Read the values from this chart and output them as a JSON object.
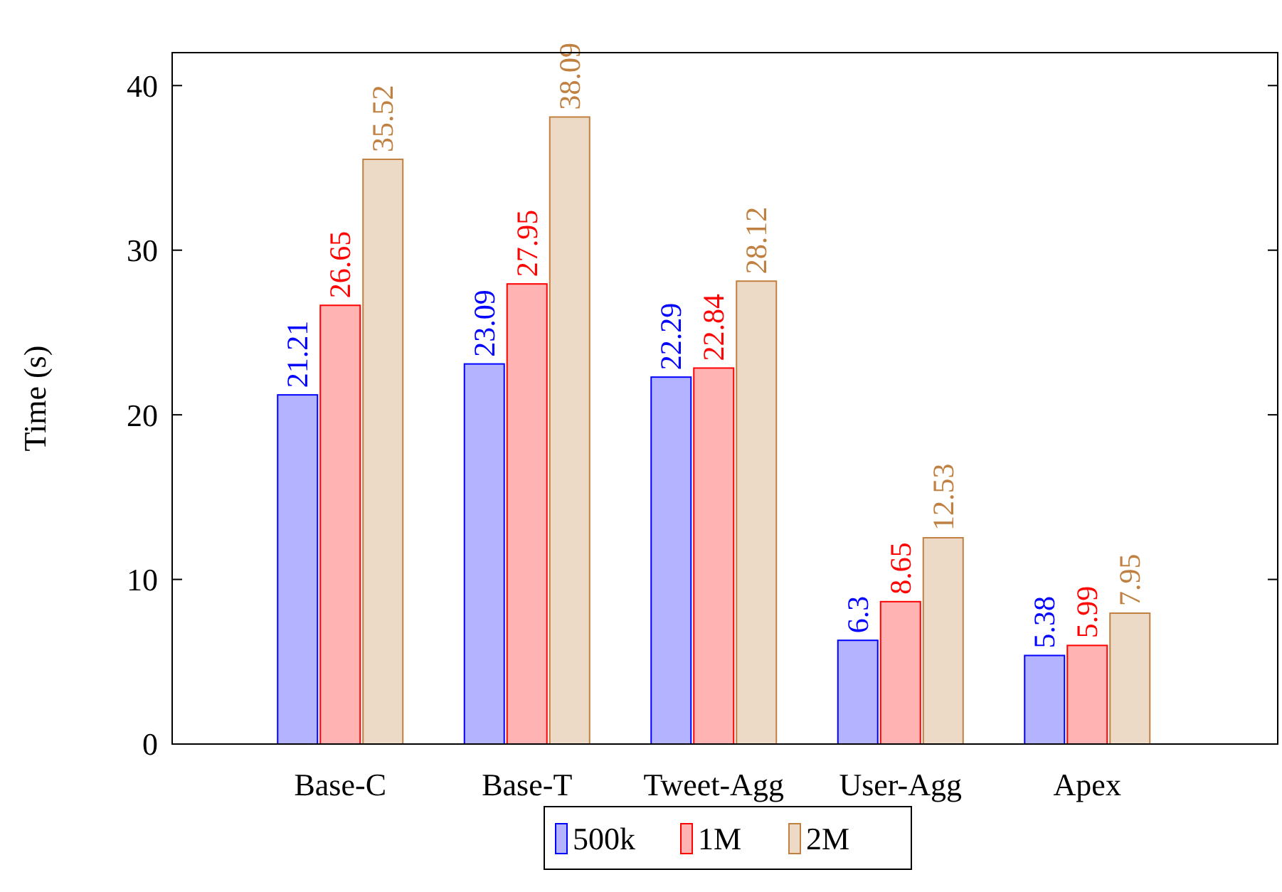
{
  "chart_data": {
    "type": "bar",
    "ylabel": "Time (s)",
    "categories": [
      "Base-C",
      "Base-T",
      "Tweet-Agg",
      "User-Agg",
      "Apex"
    ],
    "series": [
      {
        "name": "500k",
        "color": "#b3b3ff",
        "values": [
          21.21,
          23.09,
          22.29,
          6.3,
          5.38
        ]
      },
      {
        "name": "1M",
        "color": "#ffb3b3",
        "values": [
          26.65,
          27.95,
          22.84,
          8.65,
          5.99
        ]
      },
      {
        "name": "2M",
        "color": "#ecd9c6",
        "values": [
          35.52,
          38.09,
          28.12,
          12.53,
          7.95
        ]
      }
    ],
    "ylim": [
      0,
      42
    ],
    "yticks": [
      0,
      10,
      20,
      30,
      40
    ],
    "data_labels": true,
    "legend": "bottom",
    "grid": false
  }
}
